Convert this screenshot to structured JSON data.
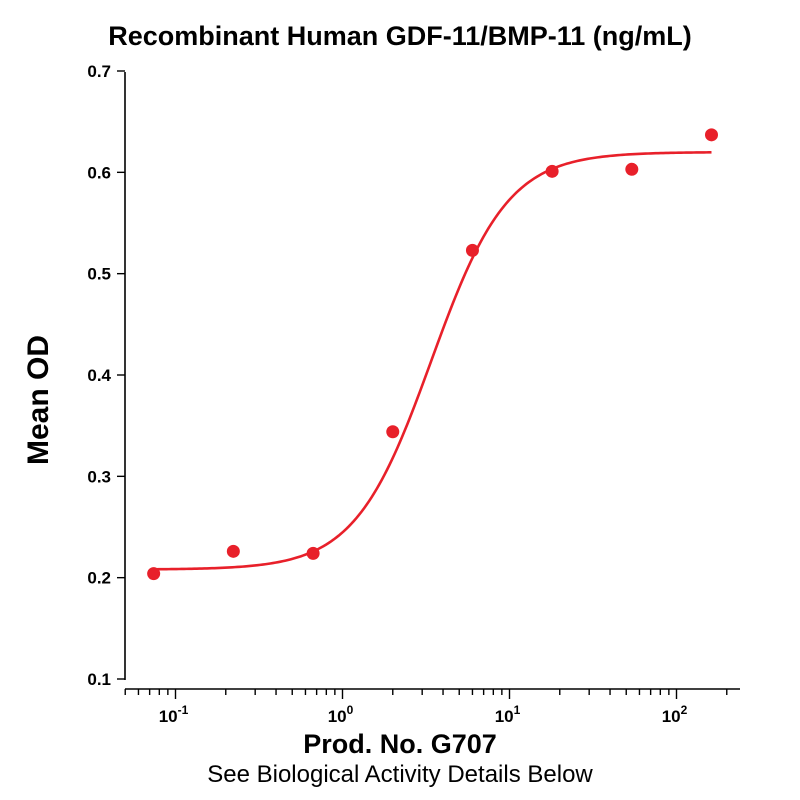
{
  "chart_data": {
    "type": "scatter",
    "title": "Recombinant Human GDF-11/BMP-11 (ng/mL)",
    "xlabel": "Prod. No. G707",
    "ylabel": "Mean OD",
    "subtitle": "See Biological Activity Details Below",
    "x_scale": "log",
    "xlim": [
      0.05,
      250
    ],
    "ylim": [
      0.1,
      0.7
    ],
    "yticks": [
      "0.1",
      "0.2",
      "0.3",
      "0.4",
      "0.5",
      "0.6",
      "0.7"
    ],
    "xticks": [
      {
        "base": "10",
        "exp": "-1"
      },
      {
        "base": "10",
        "exp": "0"
      },
      {
        "base": "10",
        "exp": "1"
      },
      {
        "base": "10",
        "exp": "2"
      }
    ],
    "grid": false,
    "series": [
      {
        "color": "#e8202a",
        "points": [
          {
            "x": 0.074,
            "y": 0.204
          },
          {
            "x": 0.222,
            "y": 0.226
          },
          {
            "x": 0.667,
            "y": 0.224
          },
          {
            "x": 2.0,
            "y": 0.344
          },
          {
            "x": 6.0,
            "y": 0.523
          },
          {
            "x": 18.0,
            "y": 0.601
          },
          {
            "x": 54.0,
            "y": 0.603
          },
          {
            "x": 162.0,
            "y": 0.637
          }
        ],
        "fit": {
          "model": "4PL",
          "bottom": 0.208,
          "top": 0.62,
          "ec50": 3.4,
          "hill": 1.9,
          "x_range": [
            0.074,
            162.0
          ]
        }
      }
    ]
  }
}
